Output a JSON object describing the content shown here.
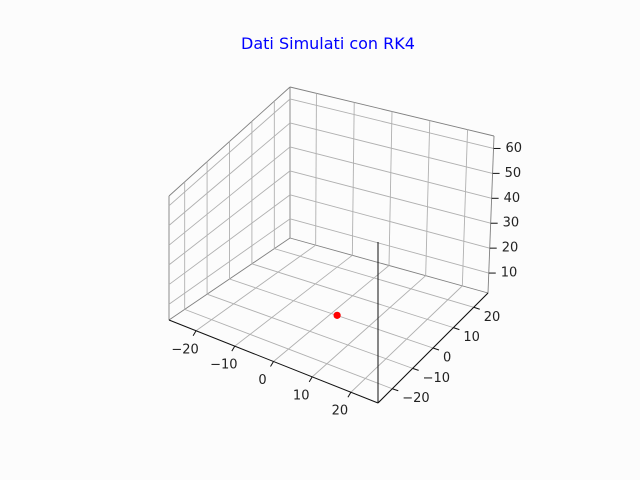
{
  "chart_data": {
    "type": "scatter3d",
    "title": "Dati Simulati con RK4",
    "title_color": "#0000ff",
    "marker_color": "#ff0000",
    "grid": true,
    "xlim": [
      -27,
      27
    ],
    "ylim": [
      -27,
      27
    ],
    "zlim": [
      2,
      65
    ],
    "x_ticks": [
      -20,
      -10,
      0,
      10,
      20
    ],
    "y_ticks": [
      -20,
      -10,
      0,
      10,
      20
    ],
    "z_ticks": [
      10,
      20,
      30,
      40,
      50,
      60
    ],
    "x_tick_labels": [
      "−20",
      "−10",
      "0",
      "10",
      "20"
    ],
    "y_tick_labels": [
      "−20",
      "−10",
      "0",
      "10",
      "20"
    ],
    "z_tick_labels": [
      "10",
      "20",
      "30",
      "40",
      "50",
      "60"
    ],
    "points": [
      {
        "x": 1,
        "y": 1,
        "z": 1
      }
    ]
  }
}
